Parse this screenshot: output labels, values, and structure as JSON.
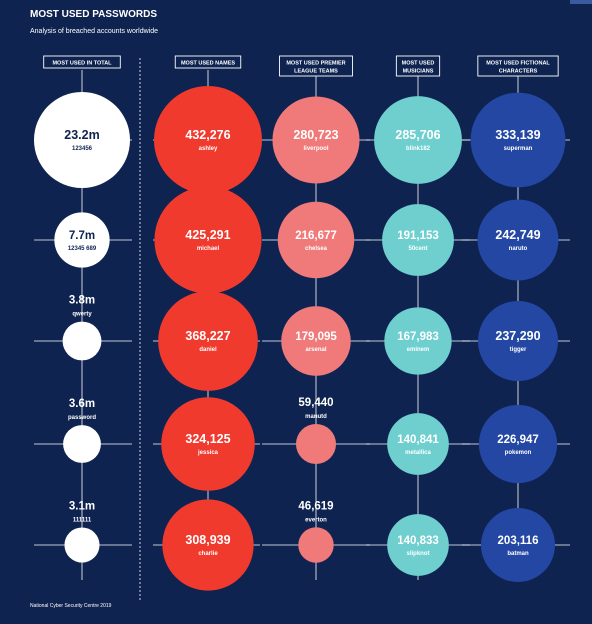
{
  "title": "MOST USED PASSWORDS",
  "subtitle": "Analysis of breached accounts worldwide",
  "source": "National Cyber Security Centre 2019",
  "colors": {
    "background": "#0f2350",
    "total": "#ffffff",
    "names": "#f03a2e",
    "teams": "#f07a7a",
    "musicians": "#6fcfcf",
    "characters": "#2347a3",
    "line": "#ffffff"
  },
  "chart_data": {
    "type": "bubble-matrix",
    "ranks": [
      1,
      2,
      3,
      4,
      5
    ],
    "columns": [
      {
        "key": "total",
        "header": [
          "MOST USED IN TOTAL"
        ],
        "items": [
          {
            "value": 23200000,
            "value_label": "23.2m",
            "label": "123456"
          },
          {
            "value": 7700000,
            "value_label": "7.7m",
            "label": "12345 689"
          },
          {
            "value": 3800000,
            "value_label": "3.8m",
            "label": "qwerty"
          },
          {
            "value": 3600000,
            "value_label": "3.6m",
            "label": "password"
          },
          {
            "value": 3100000,
            "value_label": "3.1m",
            "label": "111111"
          }
        ]
      },
      {
        "key": "names",
        "header": [
          "MOST USED NAMES"
        ],
        "items": [
          {
            "value": 432276,
            "value_label": "432,276",
            "label": "ashley"
          },
          {
            "value": 425291,
            "value_label": "425,291",
            "label": "michael"
          },
          {
            "value": 368227,
            "value_label": "368,227",
            "label": "daniel"
          },
          {
            "value": 324125,
            "value_label": "324,125",
            "label": "jessica"
          },
          {
            "value": 308939,
            "value_label": "308,939",
            "label": "charlie"
          }
        ]
      },
      {
        "key": "teams",
        "header": [
          "MOST USED PREMIER",
          "LEAGUE TEAMS"
        ],
        "items": [
          {
            "value": 280723,
            "value_label": "280,723",
            "label": "liverpool"
          },
          {
            "value": 216677,
            "value_label": "216,677",
            "label": "chelsea"
          },
          {
            "value": 179095,
            "value_label": "179,095",
            "label": "arsenal"
          },
          {
            "value": 59440,
            "value_label": "59,440",
            "label": "manutd"
          },
          {
            "value": 46619,
            "value_label": "46,619",
            "label": "everton"
          }
        ]
      },
      {
        "key": "musicians",
        "header": [
          "MOST USED",
          "MUSICIANS"
        ],
        "items": [
          {
            "value": 285706,
            "value_label": "285,706",
            "label": "blink182"
          },
          {
            "value": 191153,
            "value_label": "191,153",
            "label": "50cent"
          },
          {
            "value": 167983,
            "value_label": "167,983",
            "label": "eminem"
          },
          {
            "value": 140841,
            "value_label": "140,841",
            "label": "metallica"
          },
          {
            "value": 140833,
            "value_label": "140,833",
            "label": "slipknot"
          }
        ]
      },
      {
        "key": "characters",
        "header": [
          "MOST USED FICTIONAL",
          "CHARACTERS"
        ],
        "items": [
          {
            "value": 333139,
            "value_label": "333,139",
            "label": "superman"
          },
          {
            "value": 242749,
            "value_label": "242,749",
            "label": "naruto"
          },
          {
            "value": 237290,
            "value_label": "237,290",
            "label": "tigger"
          },
          {
            "value": 226947,
            "value_label": "226,947",
            "label": "pokemon"
          },
          {
            "value": 203116,
            "value_label": "203,116",
            "label": "batman"
          }
        ]
      }
    ]
  }
}
